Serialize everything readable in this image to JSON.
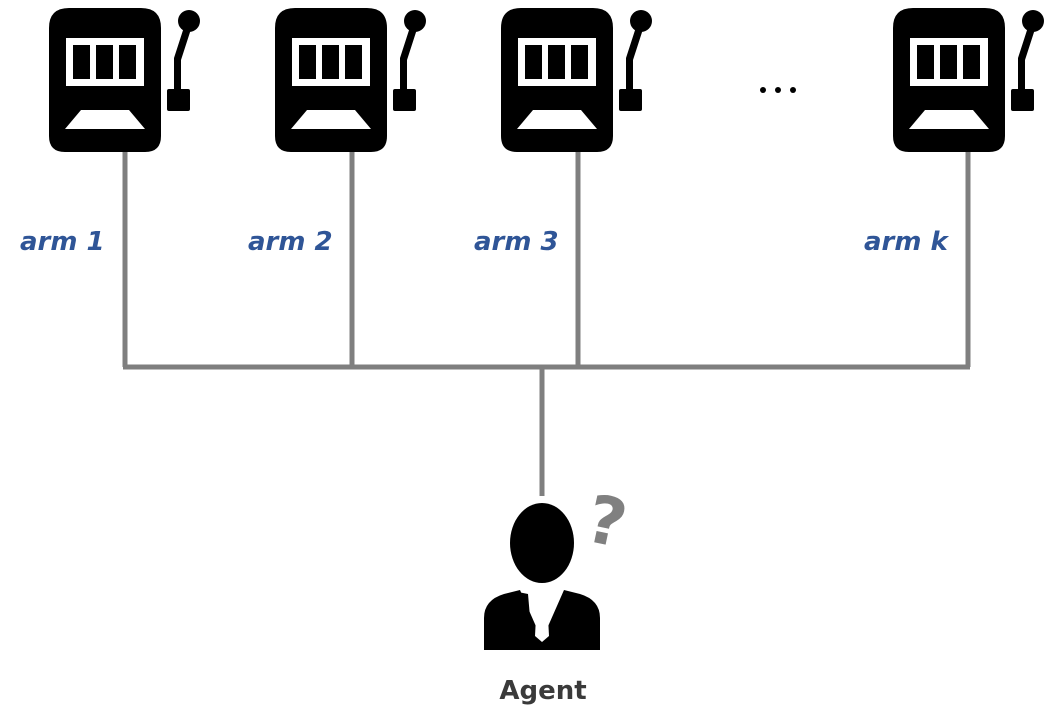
{
  "diagram": {
    "arms": [
      {
        "label": "arm 1"
      },
      {
        "label": "arm 2"
      },
      {
        "label": "arm 3"
      },
      {
        "label": "arm k"
      }
    ],
    "ellipsis": "…",
    "agent": {
      "label": "Agent",
      "question_mark": "?"
    }
  },
  "colors": {
    "icon": "#000000",
    "connector": "#7f7f7f",
    "arm_label": "#2f5597",
    "question_mark": "#808080",
    "agent_label": "#3a3a3a"
  },
  "icons": {
    "machine": "slot-machine-icon",
    "agent": "person-icon"
  }
}
